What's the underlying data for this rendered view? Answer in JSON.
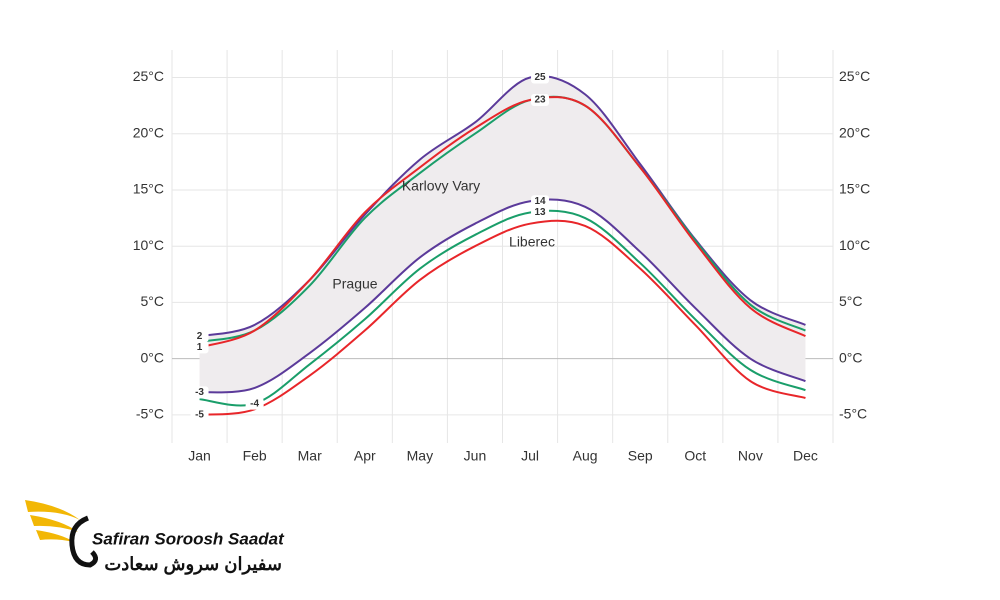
{
  "chart_data": {
    "type": "line",
    "categories": [
      "Jan",
      "Feb",
      "Mar",
      "Apr",
      "May",
      "Jun",
      "Jul",
      "Aug",
      "Sep",
      "Oct",
      "Nov",
      "Dec"
    ],
    "series": [
      {
        "name": "Prague",
        "color": "#5b3a9a",
        "values": [
          2,
          3,
          7,
          12.8,
          17.7,
          21,
          25,
          23.5,
          17.3,
          10.6,
          5.2,
          3
        ],
        "label_points": [
          0,
          6
        ]
      },
      {
        "name": "Prague",
        "color": "#5b3a9a",
        "values": [
          -3,
          -2.6,
          0.5,
          4.5,
          9,
          12,
          14,
          13.5,
          9.5,
          4.5,
          0,
          -2
        ],
        "label_points": [
          0,
          6
        ]
      },
      {
        "name": "Karlovy Vary",
        "color": "#1a9e6a",
        "values": [
          1.5,
          2.5,
          6.5,
          12.5,
          16.5,
          20,
          23,
          22.5,
          17,
          10.5,
          4.8,
          2.5
        ],
        "label_points": [
          6
        ]
      },
      {
        "name": "Karlovy Vary",
        "color": "#1a9e6a",
        "values": [
          -3.6,
          -4,
          -0.5,
          3.5,
          8,
          11,
          13,
          12.5,
          8.5,
          3.5,
          -1,
          -2.8
        ],
        "label_points": [
          1,
          6
        ]
      },
      {
        "name": "Liberec",
        "color": "#e8262a",
        "values": [
          1,
          2.5,
          7,
          13,
          17,
          20.5,
          23,
          22.5,
          17,
          10.3,
          4.5,
          2
        ],
        "label_points": [
          0
        ]
      },
      {
        "name": "Liberec",
        "color": "#e8262a",
        "values": [
          -5,
          -4.5,
          -1.5,
          2.5,
          7,
          10,
          12,
          11.8,
          8,
          3,
          -2,
          -3.5
        ],
        "label_points": [
          0
        ]
      }
    ],
    "band": [
      0,
      1
    ],
    "series_names_shown": [
      1,
      2,
      4
    ],
    "ylim": [
      -7.5,
      27
    ],
    "yticks": [
      {
        "value": -5,
        "label": "-5°C"
      },
      {
        "value": 0,
        "label": "0°C"
      },
      {
        "value": 5,
        "label": "5°C"
      },
      {
        "value": 10,
        "label": "10°C"
      },
      {
        "value": 15,
        "label": "15°C"
      },
      {
        "value": 20,
        "label": "20°C"
      },
      {
        "value": 25,
        "label": "25°C"
      }
    ],
    "grid": true,
    "right_axis": true
  },
  "logo": {
    "name": "Safiran Soroosh Saadat",
    "name_fa": "سفیران سروش سعادت"
  }
}
